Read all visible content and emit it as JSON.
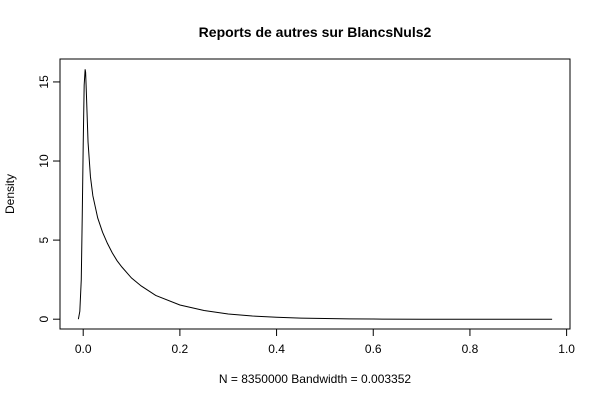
{
  "chart_data": {
    "type": "line",
    "title": "Reports de autres sur BlancsNuls2",
    "xlabel": "N = 8350000   Bandwidth = 0.003352",
    "ylabel": "Density",
    "xlim": [
      -0.048,
      1.007
    ],
    "ylim": [
      -0.62,
      16.45
    ],
    "xticks": [
      0.0,
      0.2,
      0.4,
      0.6,
      0.8,
      1.0
    ],
    "xtick_labels": [
      "0.0",
      "0.2",
      "0.4",
      "0.6",
      "0.8",
      "1.0"
    ],
    "yticks": [
      0,
      5,
      10,
      15
    ],
    "ytick_labels": [
      "0",
      "5",
      "10",
      "15"
    ],
    "grid": false,
    "legend": "none",
    "colors": {
      "line": "#000000",
      "frame": "#000000",
      "background": "#ffffff"
    },
    "series": [
      {
        "x": [
          -0.01,
          -0.007,
          -0.004,
          -0.002,
          0.0,
          0.002,
          0.004,
          0.005,
          0.006,
          0.008,
          0.01,
          0.015,
          0.02,
          0.03,
          0.04,
          0.05,
          0.06,
          0.07,
          0.08,
          0.1,
          0.12,
          0.15,
          0.2,
          0.25,
          0.3,
          0.35,
          0.4,
          0.45,
          0.5,
          0.55,
          0.6,
          0.7,
          0.8,
          0.9,
          0.97
        ],
        "y": [
          0.0,
          0.5,
          2.5,
          6.5,
          11.0,
          14.8,
          15.8,
          15.6,
          14.8,
          13.0,
          11.2,
          9.0,
          7.8,
          6.4,
          5.5,
          4.8,
          4.2,
          3.7,
          3.3,
          2.6,
          2.1,
          1.5,
          0.9,
          0.55,
          0.33,
          0.2,
          0.12,
          0.07,
          0.04,
          0.02,
          0.01,
          0.0,
          0.0,
          0.0,
          0.0
        ]
      }
    ]
  }
}
